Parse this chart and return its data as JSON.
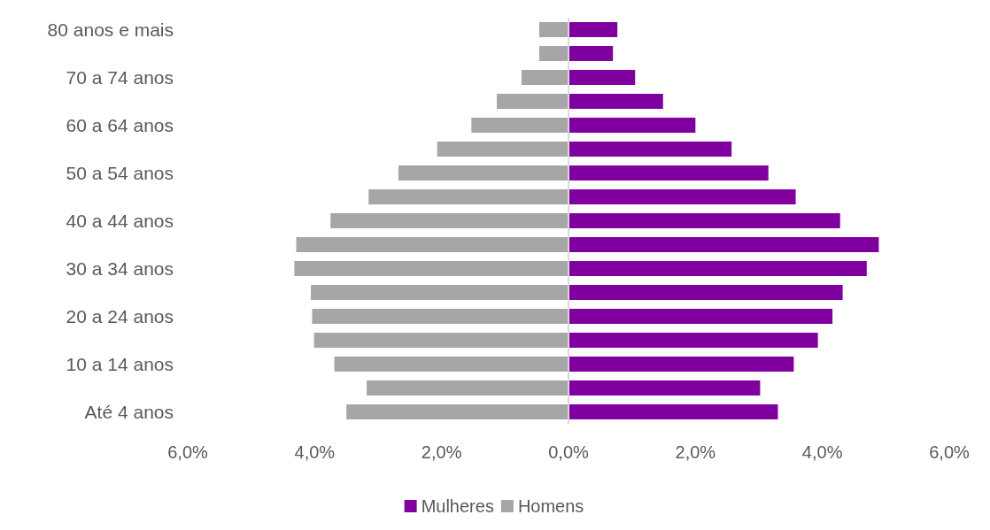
{
  "chart_data": {
    "type": "bar",
    "orientation": "horizontal",
    "categories": [
      "80 anos e mais",
      null,
      "70 a 74 anos",
      null,
      "60 a 64 anos",
      null,
      "50 a 54 anos",
      null,
      "40 a 44 anos",
      null,
      "30 a 34 anos",
      null,
      "20 a 24 anos",
      null,
      "10 a 14 anos",
      null,
      "Até 4 anos"
    ],
    "series": [
      {
        "name": "Mulheres",
        "color": "#7f009f",
        "values": [
          0.77,
          0.7,
          1.05,
          1.49,
          2.0,
          2.57,
          3.15,
          3.58,
          4.28,
          4.89,
          4.7,
          4.32,
          4.16,
          3.93,
          3.55,
          3.02,
          3.3
        ]
      },
      {
        "name": "Homens",
        "color": "#a6a6a6",
        "values": [
          -0.46,
          -0.46,
          -0.74,
          -1.13,
          -1.53,
          -2.07,
          -2.68,
          -3.15,
          -3.75,
          -4.29,
          -4.32,
          -4.06,
          -4.04,
          -4.01,
          -3.69,
          -3.18,
          -3.5
        ]
      }
    ],
    "xlim": [
      -6,
      6
    ],
    "xticks": [
      {
        "value": -6,
        "label": "6,0%"
      },
      {
        "value": -4,
        "label": "4,0%"
      },
      {
        "value": -2,
        "label": "2,0%"
      },
      {
        "value": 0,
        "label": "0,0%"
      },
      {
        "value": 2,
        "label": "2,0%"
      },
      {
        "value": 4,
        "label": "4,0%"
      },
      {
        "value": 6,
        "label": "6,0%"
      }
    ],
    "stacked": true,
    "ref_lines": [
      {
        "axis": "x",
        "value": 0,
        "color": "#d9d9d9"
      }
    ],
    "grid": false,
    "legend": "bottom"
  }
}
